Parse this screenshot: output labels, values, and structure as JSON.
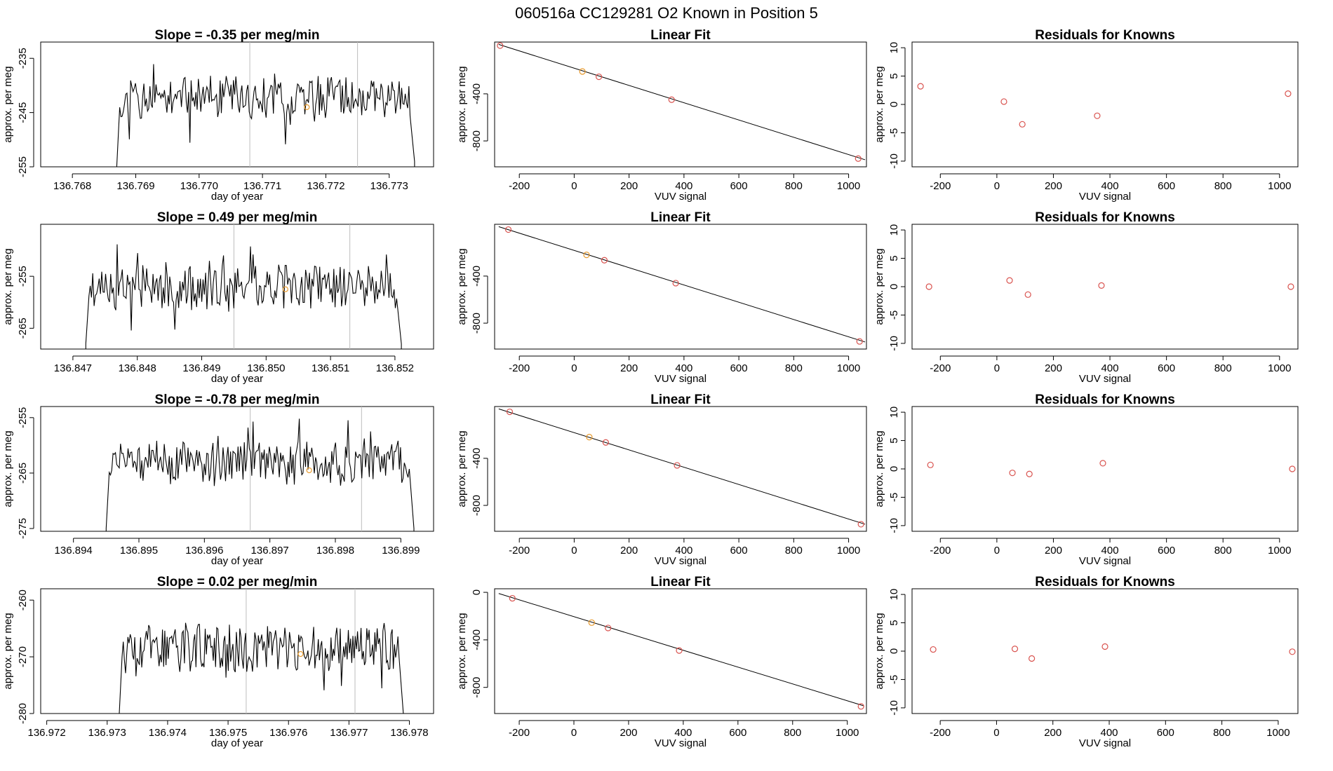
{
  "suptitle": "060516a      CC129281    O2 Known in Position  5",
  "colors": {
    "known": "#e89a2c",
    "resid": "#d9534f",
    "vline": "#bdbdbd",
    "line": "#000000"
  },
  "chart_data": [
    {
      "type": "line",
      "title": "Slope =  -0.35  per meg/min",
      "xlabel": "day of year",
      "ylabel": "approx. per meg",
      "xlim": [
        136.7675,
        136.7737
      ],
      "ylim": [
        -255,
        -232
      ],
      "xticks": [
        136.768,
        136.769,
        136.77,
        136.771,
        136.772,
        136.773
      ],
      "xtick_labels": [
        "136.768",
        "136.769",
        "136.770",
        "136.771",
        "136.772",
        "136.773"
      ],
      "yticks": [
        -235,
        -245,
        -255
      ],
      "ytick_labels": [
        "-235",
        "-245",
        "-255"
      ],
      "x_start": 136.7687,
      "x_end": 136.7734,
      "seed": 11,
      "baseline": -242.5,
      "amp": 3.4,
      "start_drop": -255,
      "end_drop": -254,
      "vlines": [
        136.7708,
        136.7725
      ],
      "known_point": {
        "x": 136.7717,
        "y": -244
      }
    },
    {
      "type": "scatter_fit",
      "title": "Linear Fit",
      "xlabel": "VUV signal",
      "ylabel": "approx. per meg",
      "xlim": [
        -290,
        1065
      ],
      "ylim": [
        -1020,
        40
      ],
      "xticks": [
        -200,
        0,
        200,
        400,
        600,
        800,
        1000
      ],
      "xtick_labels": [
        "-200",
        "0",
        "200",
        "400",
        "600",
        "800",
        "1000"
      ],
      "yticks": [
        -400,
        -800
      ],
      "ytick_labels": [
        "-400",
        "-800"
      ],
      "line": [
        [
          -275,
          20
        ],
        [
          1060,
          -960
        ]
      ],
      "points": [
        {
          "x": -270,
          "y": 10,
          "known": false
        },
        {
          "x": 30,
          "y": -210,
          "known": true
        },
        {
          "x": 90,
          "y": -255,
          "known": false
        },
        {
          "x": 355,
          "y": -450,
          "known": false
        },
        {
          "x": 1035,
          "y": -950,
          "known": false
        }
      ]
    },
    {
      "type": "scatter",
      "title": "Residuals for Knowns",
      "xlabel": "VUV signal",
      "ylabel": "approx. per meg",
      "xlim": [
        -300,
        1065
      ],
      "ylim": [
        -11,
        11
      ],
      "xticks": [
        -200,
        0,
        200,
        400,
        600,
        800,
        1000
      ],
      "xtick_labels": [
        "-200",
        "0",
        "200",
        "400",
        "600",
        "800",
        "1000"
      ],
      "yticks": [
        10,
        5,
        0,
        -5,
        -10
      ],
      "ytick_labels": [
        "10",
        "5",
        "0",
        "-5",
        "-10"
      ],
      "points": [
        {
          "x": -270,
          "y": 3.2
        },
        {
          "x": 25,
          "y": 0.5
        },
        {
          "x": 90,
          "y": -3.5
        },
        {
          "x": 355,
          "y": -2.0
        },
        {
          "x": 1030,
          "y": 1.9
        }
      ]
    },
    {
      "type": "line",
      "title": "Slope =  0.49  per meg/min",
      "xlabel": "day of year",
      "ylabel": "approx. per meg",
      "xlim": [
        136.8465,
        136.8526
      ],
      "ylim": [
        -269,
        -245
      ],
      "xticks": [
        136.847,
        136.848,
        136.849,
        136.85,
        136.851,
        136.852
      ],
      "xtick_labels": [
        "136.847",
        "136.848",
        "136.849",
        "136.850",
        "136.851",
        "136.852"
      ],
      "yticks": [
        -255,
        -265
      ],
      "ytick_labels": [
        "-255",
        "-265"
      ],
      "x_start": 136.8472,
      "x_end": 136.8521,
      "seed": 23,
      "baseline": -257,
      "amp": 3.8,
      "start_drop": -268,
      "end_drop": -268,
      "vlines": [
        136.8495,
        136.8513
      ],
      "known_point": {
        "x": 136.8503,
        "y": -257.5
      }
    },
    {
      "type": "scatter_fit",
      "title": "Linear Fit",
      "xlabel": "VUV signal",
      "ylabel": "approx. per meg",
      "xlim": [
        -290,
        1065
      ],
      "ylim": [
        -1020,
        40
      ],
      "xticks": [
        -200,
        0,
        200,
        400,
        600,
        800,
        1000
      ],
      "xtick_labels": [
        "-200",
        "0",
        "200",
        "400",
        "600",
        "800",
        "1000"
      ],
      "yticks": [
        -400,
        -800
      ],
      "ytick_labels": [
        "-400",
        "-800"
      ],
      "line": [
        [
          -275,
          20
        ],
        [
          1060,
          -960
        ]
      ],
      "points": [
        {
          "x": -240,
          "y": -5,
          "known": false
        },
        {
          "x": 45,
          "y": -220,
          "known": true
        },
        {
          "x": 110,
          "y": -265,
          "known": false
        },
        {
          "x": 370,
          "y": -460,
          "known": false
        },
        {
          "x": 1040,
          "y": -955,
          "known": false
        }
      ]
    },
    {
      "type": "scatter",
      "title": "Residuals for Knowns",
      "xlabel": "VUV signal",
      "ylabel": "approx. per meg",
      "xlim": [
        -300,
        1065
      ],
      "ylim": [
        -11,
        11
      ],
      "xticks": [
        -200,
        0,
        200,
        400,
        600,
        800,
        1000
      ],
      "xtick_labels": [
        "-200",
        "0",
        "200",
        "400",
        "600",
        "800",
        "1000"
      ],
      "yticks": [
        10,
        5,
        0,
        -5,
        -10
      ],
      "ytick_labels": [
        "10",
        "5",
        "0",
        "-5",
        "-10"
      ],
      "points": [
        {
          "x": -240,
          "y": 0.0
        },
        {
          "x": 45,
          "y": 1.1
        },
        {
          "x": 110,
          "y": -1.4
        },
        {
          "x": 370,
          "y": 0.2
        },
        {
          "x": 1040,
          "y": 0.0
        }
      ]
    },
    {
      "type": "line",
      "title": "Slope =  -0.78  per meg/min",
      "xlabel": "day of year",
      "ylabel": "approx. per meg",
      "xlim": [
        136.8935,
        136.8995
      ],
      "ylim": [
        -275.5,
        -253
      ],
      "xticks": [
        136.894,
        136.895,
        136.896,
        136.897,
        136.898,
        136.899
      ],
      "xtick_labels": [
        "136.894",
        "136.895",
        "136.896",
        "136.897",
        "136.898",
        "136.899"
      ],
      "yticks": [
        -255,
        -265,
        -275
      ],
      "ytick_labels": [
        "-255",
        "-265",
        "-275"
      ],
      "x_start": 136.8945,
      "x_end": 136.8992,
      "seed": 37,
      "baseline": -263,
      "amp": 3.5,
      "start_drop": -275,
      "end_drop": -275,
      "vlines": [
        136.8967,
        136.8984
      ],
      "known_point": {
        "x": 136.8976,
        "y": -264.5
      }
    },
    {
      "type": "scatter_fit",
      "title": "Linear Fit",
      "xlabel": "VUV signal",
      "ylabel": "approx. per meg",
      "xlim": [
        -290,
        1065
      ],
      "ylim": [
        -1020,
        40
      ],
      "xticks": [
        -200,
        0,
        200,
        400,
        600,
        800,
        1000
      ],
      "xtick_labels": [
        "-200",
        "0",
        "200",
        "400",
        "600",
        "800",
        "1000"
      ],
      "yticks": [
        -400,
        -800
      ],
      "ytick_labels": [
        "-400",
        "-800"
      ],
      "line": [
        [
          -275,
          20
        ],
        [
          1060,
          -960
        ]
      ],
      "points": [
        {
          "x": -235,
          "y": -5,
          "known": false
        },
        {
          "x": 55,
          "y": -220,
          "known": true
        },
        {
          "x": 115,
          "y": -265,
          "known": false
        },
        {
          "x": 375,
          "y": -460,
          "known": false
        },
        {
          "x": 1045,
          "y": -960,
          "known": false
        }
      ]
    },
    {
      "type": "scatter",
      "title": "Residuals for Knowns",
      "xlabel": "VUV signal",
      "ylabel": "approx. per meg",
      "xlim": [
        -300,
        1065
      ],
      "ylim": [
        -11,
        11
      ],
      "xticks": [
        -200,
        0,
        200,
        400,
        600,
        800,
        1000
      ],
      "xtick_labels": [
        "-200",
        "0",
        "200",
        "400",
        "600",
        "800",
        "1000"
      ],
      "yticks": [
        10,
        5,
        0,
        -5,
        -10
      ],
      "ytick_labels": [
        "10",
        "5",
        "0",
        "-5",
        "-10"
      ],
      "points": [
        {
          "x": -235,
          "y": 0.7
        },
        {
          "x": 55,
          "y": -0.7
        },
        {
          "x": 115,
          "y": -0.9
        },
        {
          "x": 375,
          "y": 1.0
        },
        {
          "x": 1045,
          "y": 0.0
        }
      ]
    },
    {
      "type": "line",
      "title": "Slope =  0.02  per meg/min",
      "xlabel": "day of year",
      "ylabel": "approx. per meg",
      "xlim": [
        136.9719,
        136.9784
      ],
      "ylim": [
        -280,
        -258
      ],
      "xticks": [
        136.972,
        136.973,
        136.974,
        136.975,
        136.976,
        136.977,
        136.978
      ],
      "xtick_labels": [
        "136.972",
        "136.973",
        "136.974",
        "136.975",
        "136.976",
        "136.977",
        "136.978"
      ],
      "yticks": [
        -260,
        -270,
        -280
      ],
      "ytick_labels": [
        "-260",
        "-270",
        "-280"
      ],
      "x_start": 136.9732,
      "x_end": 136.9779,
      "seed": 53,
      "baseline": -268.5,
      "amp": 4.0,
      "start_drop": -280,
      "end_drop": -280,
      "vlines": [
        136.9753,
        136.9771
      ],
      "known_point": {
        "x": 136.9762,
        "y": -269.5
      }
    },
    {
      "type": "scatter_fit",
      "title": "Linear Fit",
      "xlabel": "VUV signal",
      "ylabel": "approx. per meg",
      "xlim": [
        -290,
        1070
      ],
      "ylim": [
        -1020,
        30
      ],
      "xticks": [
        -200,
        0,
        200,
        400,
        600,
        800,
        1000
      ],
      "xtick_labels": [
        "-200",
        "0",
        "200",
        "400",
        "600",
        "800",
        "1000"
      ],
      "yticks": [
        0,
        -400,
        -800
      ],
      "ytick_labels": [
        "0",
        "-400",
        "-800"
      ],
      "line": [
        [
          -275,
          -10
        ],
        [
          1060,
          -955
        ]
      ],
      "points": [
        {
          "x": -225,
          "y": -50,
          "known": false
        },
        {
          "x": 65,
          "y": -255,
          "known": true
        },
        {
          "x": 125,
          "y": -300,
          "known": false
        },
        {
          "x": 385,
          "y": -490,
          "known": false
        },
        {
          "x": 1050,
          "y": -960,
          "known": false
        }
      ]
    },
    {
      "type": "scatter",
      "title": "Residuals for Knowns",
      "xlabel": "VUV signal",
      "ylabel": "approx. per meg",
      "xlim": [
        -300,
        1070
      ],
      "ylim": [
        -11,
        11
      ],
      "xticks": [
        -200,
        0,
        200,
        400,
        600,
        800,
        1000
      ],
      "xtick_labels": [
        "-200",
        "0",
        "200",
        "400",
        "600",
        "800",
        "1000"
      ],
      "yticks": [
        10,
        5,
        0,
        -5,
        -10
      ],
      "ytick_labels": [
        "10",
        "5",
        "0",
        "-5",
        "-10"
      ],
      "points": [
        {
          "x": -225,
          "y": 0.3
        },
        {
          "x": 65,
          "y": 0.4
        },
        {
          "x": 125,
          "y": -1.3
        },
        {
          "x": 385,
          "y": 0.8
        },
        {
          "x": 1050,
          "y": -0.1
        }
      ]
    }
  ]
}
